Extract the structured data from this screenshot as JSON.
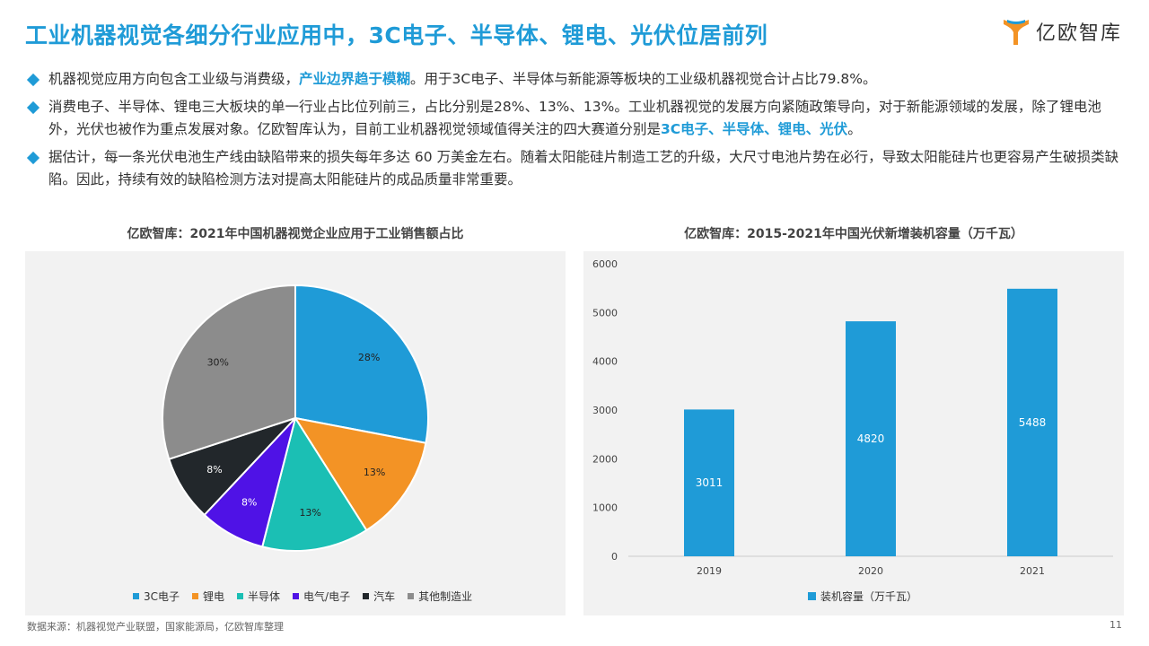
{
  "header": {
    "title": "工业机器视觉各细分行业应用中，3C电子、半导体、锂电、光伏位居前列",
    "logo_text": "亿欧智库"
  },
  "bullets": [
    {
      "pre": "机器视觉应用方向包含工业级与消费级，",
      "highlight": "产业边界趋于模糊",
      "post": "。用于3C电子、半导体与新能源等板块的工业级机器视觉合计占比79.8%。"
    },
    {
      "pre": "消费电子、半导体、锂电三大板块的单一行业占比位列前三，占比分别是28%、13%、13%。工业机器视觉的发展方向紧随政策导向，对于新能源领域的发展，除了锂电池外，光伏也被作为重点发展对象。亿欧智库认为，目前工业机器视觉领域值得关注的四大赛道分别是",
      "highlight": "3C电子、半导体、锂电、光伏",
      "post": "。"
    },
    {
      "pre": "据估计，每一条光伏电池生产线由缺陷带来的损失每年多达 60 万美金左右。随着太阳能硅片制造工艺的升级，大尺寸电池片势在必行，导致太阳能硅片也更容易产生破损类缺陷。因此，持续有效的缺陷检测方法对提高太阳能硅片的成品质量非常重要。",
      "highlight": "",
      "post": ""
    }
  ],
  "chart_data": [
    {
      "type": "pie",
      "title": "亿欧智库：2021年中国机器视觉企业应用于工业销售额占比",
      "categories": [
        "3C电子",
        "锂电",
        "半导体",
        "电气/电子",
        "汽车",
        "其他制造业"
      ],
      "values": [
        28,
        13,
        13,
        8,
        8,
        30
      ],
      "labels": [
        "28%",
        "13%",
        "13%",
        "8%",
        "8%",
        "30%"
      ],
      "colors": [
        "#1f9bd7",
        "#f39325",
        "#1bbfb4",
        "#4f12e6",
        "#22272b",
        "#8c8c8c"
      ],
      "legend_position": "bottom"
    },
    {
      "type": "bar",
      "title": "亿欧智库：2015-2021年中国光伏新增装机容量（万千瓦）",
      "categories": [
        "2019",
        "2020",
        "2021"
      ],
      "series": [
        {
          "name": "装机容量（万千瓦）",
          "values": [
            3011,
            4820,
            5488
          ],
          "color": "#1f9bd7"
        }
      ],
      "ylim": [
        0,
        6000
      ],
      "yticks": [
        "0",
        "1000",
        "2000",
        "3000",
        "4000",
        "5000",
        "6000"
      ],
      "legend_position": "bottom"
    }
  ],
  "footer": {
    "source": "数据来源：机器视觉产业联盟，国家能源局，亿欧智库整理",
    "page_number": "11"
  }
}
